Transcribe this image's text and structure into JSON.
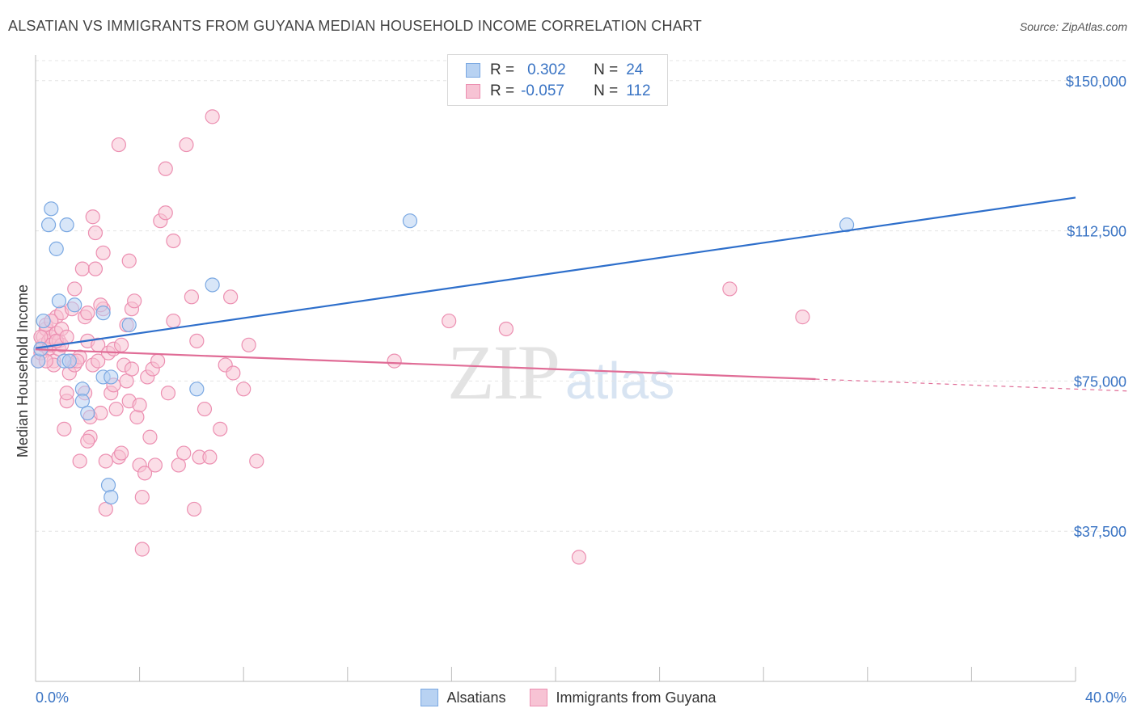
{
  "header": {
    "title": "ALSATIAN VS IMMIGRANTS FROM GUYANA MEDIAN HOUSEHOLD INCOME CORRELATION CHART",
    "source": "Source: ZipAtlas.com"
  },
  "watermark": {
    "zip": "ZIP",
    "atlas": "atlas"
  },
  "legend": {
    "rows": [
      {
        "r_key": "R =",
        "r_val": "0.302",
        "n_key": "N =",
        "n_val": "24",
        "color": "#3a74c4"
      },
      {
        "r_key": "R =",
        "r_val": "-0.057",
        "n_key": "N =",
        "n_val": "112",
        "color": "#e06c96"
      }
    ]
  },
  "colors": {
    "blue_fill": "#b8d2f2",
    "blue_stroke": "#7aa8e2",
    "blue_line": "#2e6fcb",
    "pink_fill": "#f7c3d4",
    "pink_stroke": "#ec8fb1",
    "pink_line": "#e06c96",
    "axis_label": "#3a74c4",
    "grid": "#e4e4e4"
  },
  "chart_data": {
    "type": "scatter",
    "title": "ALSATIAN VS IMMIGRANTS FROM GUYANA MEDIAN HOUSEHOLD INCOME CORRELATION CHART",
    "xlabel": "",
    "ylabel": "Median Household Income",
    "xlim": [
      0,
      40
    ],
    "ylim": [
      0,
      155000
    ],
    "x_tick_labels": [
      "0.0%",
      "40.0%"
    ],
    "y_ticks": [
      37500,
      75000,
      112500,
      150000
    ],
    "y_tick_labels": [
      "$37,500",
      "$75,000",
      "$112,500",
      "$150,000"
    ],
    "grid": "horizontal dashed",
    "legend_position": "top-center",
    "series": [
      {
        "name": "Alsatians",
        "points": [
          [
            0.1,
            80000
          ],
          [
            0.2,
            83000
          ],
          [
            0.3,
            90000
          ],
          [
            0.6,
            118000
          ],
          [
            0.5,
            114000
          ],
          [
            0.8,
            108000
          ],
          [
            0.9,
            95000
          ],
          [
            1.2,
            114000
          ],
          [
            1.5,
            94000
          ],
          [
            1.1,
            80000
          ],
          [
            1.3,
            80000
          ],
          [
            1.8,
            73000
          ],
          [
            1.8,
            70000
          ],
          [
            2.0,
            67000
          ],
          [
            2.6,
            92000
          ],
          [
            2.6,
            76000
          ],
          [
            2.9,
            76000
          ],
          [
            3.6,
            89000
          ],
          [
            2.8,
            49000
          ],
          [
            2.9,
            46000
          ],
          [
            6.2,
            73000
          ],
          [
            6.8,
            99000
          ],
          [
            14.4,
            115000
          ],
          [
            31.2,
            114000
          ]
        ],
        "trend": {
          "x": [
            0,
            40
          ],
          "y": [
            83200,
            120800
          ]
        }
      },
      {
        "name": "Immigrants from Guyana",
        "points": [
          [
            0.1,
            80000
          ],
          [
            0.2,
            82000
          ],
          [
            0.3,
            84000
          ],
          [
            0.3,
            86000
          ],
          [
            0.4,
            88000
          ],
          [
            0.4,
            89000
          ],
          [
            0.5,
            85000
          ],
          [
            0.5,
            83000
          ],
          [
            0.6,
            86000
          ],
          [
            0.6,
            84000
          ],
          [
            0.7,
            80000
          ],
          [
            0.7,
            79000
          ],
          [
            0.8,
            87000
          ],
          [
            0.8,
            91000
          ],
          [
            0.9,
            85000
          ],
          [
            0.9,
            83000
          ],
          [
            1.0,
            84000
          ],
          [
            1.0,
            92000
          ],
          [
            1.1,
            63000
          ],
          [
            1.2,
            70000
          ],
          [
            1.2,
            72000
          ],
          [
            1.3,
            77000
          ],
          [
            1.4,
            80000
          ],
          [
            1.4,
            93000
          ],
          [
            1.5,
            98000
          ],
          [
            1.5,
            79000
          ],
          [
            1.7,
            81000
          ],
          [
            1.7,
            55000
          ],
          [
            1.8,
            103000
          ],
          [
            1.9,
            91000
          ],
          [
            1.9,
            72000
          ],
          [
            2.0,
            92000
          ],
          [
            2.0,
            85000
          ],
          [
            2.1,
            61000
          ],
          [
            2.1,
            66000
          ],
          [
            2.2,
            116000
          ],
          [
            2.2,
            79000
          ],
          [
            2.3,
            112000
          ],
          [
            2.3,
            103000
          ],
          [
            2.4,
            84000
          ],
          [
            2.4,
            80000
          ],
          [
            2.5,
            67000
          ],
          [
            2.6,
            107000
          ],
          [
            2.6,
            93000
          ],
          [
            2.7,
            55000
          ],
          [
            2.7,
            43000
          ],
          [
            2.8,
            82000
          ],
          [
            2.9,
            72000
          ],
          [
            3.0,
            83000
          ],
          [
            3.1,
            68000
          ],
          [
            3.2,
            56000
          ],
          [
            3.2,
            134000
          ],
          [
            3.3,
            57000
          ],
          [
            3.3,
            84000
          ],
          [
            3.4,
            79000
          ],
          [
            3.5,
            75000
          ],
          [
            3.5,
            89000
          ],
          [
            3.6,
            70000
          ],
          [
            3.6,
            105000
          ],
          [
            3.7,
            93000
          ],
          [
            3.7,
            78000
          ],
          [
            3.8,
            95000
          ],
          [
            3.9,
            66000
          ],
          [
            4.0,
            54000
          ],
          [
            4.0,
            69000
          ],
          [
            4.1,
            33000
          ],
          [
            4.1,
            46000
          ],
          [
            4.2,
            52000
          ],
          [
            4.3,
            76000
          ],
          [
            4.4,
            61000
          ],
          [
            4.5,
            78000
          ],
          [
            4.6,
            54000
          ],
          [
            4.7,
            80000
          ],
          [
            4.8,
            115000
          ],
          [
            5.0,
            128000
          ],
          [
            5.0,
            117000
          ],
          [
            5.1,
            72000
          ],
          [
            5.3,
            90000
          ],
          [
            5.3,
            110000
          ],
          [
            5.5,
            54000
          ],
          [
            5.7,
            57000
          ],
          [
            5.8,
            134000
          ],
          [
            6.0,
            96000
          ],
          [
            6.1,
            43000
          ],
          [
            6.2,
            85000
          ],
          [
            6.3,
            56000
          ],
          [
            6.5,
            68000
          ],
          [
            6.7,
            56000
          ],
          [
            6.8,
            141000
          ],
          [
            7.1,
            63000
          ],
          [
            7.3,
            79000
          ],
          [
            7.5,
            96000
          ],
          [
            7.6,
            77000
          ],
          [
            8.0,
            73000
          ],
          [
            8.2,
            84000
          ],
          [
            8.5,
            55000
          ],
          [
            13.8,
            80000
          ],
          [
            15.9,
            90000
          ],
          [
            18.1,
            88000
          ],
          [
            20.9,
            31000
          ],
          [
            26.7,
            98000
          ],
          [
            29.5,
            91000
          ],
          [
            0.2,
            86000
          ],
          [
            0.4,
            80000
          ],
          [
            0.6,
            90000
          ],
          [
            0.8,
            85000
          ],
          [
            1.0,
            88000
          ],
          [
            1.2,
            86000
          ],
          [
            1.6,
            80000
          ],
          [
            2.5,
            94000
          ],
          [
            3.0,
            74000
          ],
          [
            2.0,
            60000
          ]
        ],
        "trend": {
          "x": [
            0,
            40
          ],
          "y": [
            82900,
            73000
          ],
          "solid_until_x": 30
        }
      }
    ]
  },
  "bottom_legend": [
    {
      "label": "Alsatians"
    },
    {
      "label": "Immigrants from Guyana"
    }
  ]
}
